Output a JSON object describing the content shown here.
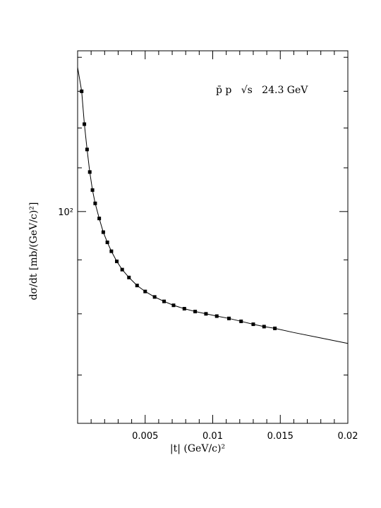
{
  "chart_data": {
    "type": "scatter",
    "annotation": "p̄ p   √s   24.3 GeV",
    "xlabel": "|t| (GeV/c)²",
    "ylabel": "dσ/dt [mb/(GeV/c)²]",
    "xlim": [
      0,
      0.02
    ],
    "ylim": [
      63,
      142
    ],
    "yscale": "log",
    "grid": false,
    "x_ticks": [
      {
        "value": 0.005,
        "label": "0.005"
      },
      {
        "value": 0.01,
        "label": "0.01"
      },
      {
        "value": 0.015,
        "label": "0.015"
      },
      {
        "value": 0.02,
        "label": "0.02"
      }
    ],
    "y_ticks": [
      {
        "value": 100,
        "label": "10²"
      }
    ],
    "series": [
      {
        "kind": "points",
        "marker": "square",
        "color": "#000000",
        "x": [
          0.0003,
          0.0005,
          0.0007,
          0.0009,
          0.0011,
          0.0013,
          0.0016,
          0.0019,
          0.0022,
          0.0025,
          0.0029,
          0.0033,
          0.0038,
          0.0044,
          0.005,
          0.0057,
          0.0064,
          0.0071,
          0.0079,
          0.0087,
          0.0095,
          0.0103,
          0.0112,
          0.0121,
          0.013,
          0.0138,
          0.0146
        ],
        "y": [
          130.0,
          121.0,
          114.5,
          109.0,
          104.8,
          101.8,
          98.5,
          95.6,
          93.5,
          91.7,
          89.7,
          88.1,
          86.6,
          85.1,
          84.0,
          83.0,
          82.2,
          81.5,
          80.9,
          80.4,
          80.0,
          79.6,
          79.2,
          78.7,
          78.2,
          77.8,
          77.5
        ]
      },
      {
        "kind": "fit",
        "color": "#000000",
        "x": [
          0.0,
          0.0003,
          0.0005,
          0.0007,
          0.0009,
          0.0011,
          0.0013,
          0.0016,
          0.0019,
          0.0022,
          0.0025,
          0.0029,
          0.0033,
          0.0038,
          0.0044,
          0.005,
          0.0057,
          0.0064,
          0.0071,
          0.0079,
          0.0087,
          0.0095,
          0.0103,
          0.0112,
          0.0121,
          0.013,
          0.0138,
          0.0146,
          0.016,
          0.018,
          0.02
        ],
        "y": [
          137.0,
          130.0,
          121.0,
          114.5,
          109.0,
          104.8,
          101.8,
          98.5,
          95.6,
          93.5,
          91.7,
          89.7,
          88.1,
          86.6,
          85.1,
          84.0,
          83.0,
          82.2,
          81.5,
          80.9,
          80.4,
          80.0,
          79.6,
          79.2,
          78.7,
          78.2,
          77.8,
          77.5,
          76.8,
          75.9,
          75.0
        ]
      }
    ]
  }
}
